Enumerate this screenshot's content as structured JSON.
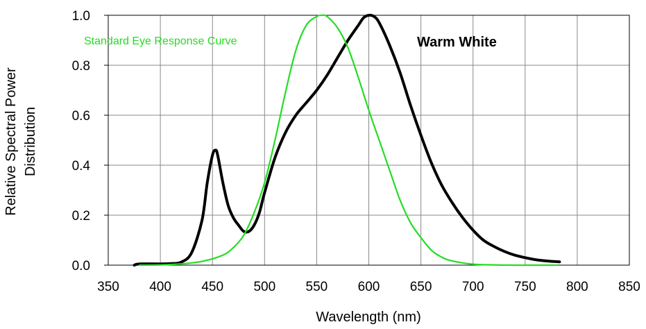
{
  "chart_data": {
    "type": "line",
    "title": "",
    "xlabel": "Wavelength (nm)",
    "ylabel": [
      "Relative Spectral Power",
      "Distribution"
    ],
    "xlim": [
      350,
      850
    ],
    "ylim": [
      0,
      1.0
    ],
    "xticks": [
      350,
      400,
      450,
      500,
      550,
      600,
      650,
      700,
      750,
      800,
      850
    ],
    "yticks": [
      "0.0",
      "0.2",
      "0.4",
      "0.6",
      "0.8",
      "1.0"
    ],
    "grid": true,
    "annotations": [
      {
        "text": "Standard Eye Response Curve",
        "color": "#22dd22"
      },
      {
        "text": "Warm White",
        "color": "#000000"
      }
    ],
    "series": [
      {
        "color": "#000000",
        "x": [
          375,
          380,
          400,
          410,
          420,
          430,
          440,
          445,
          450,
          453,
          455,
          460,
          465,
          470,
          475,
          480,
          485,
          490,
          495,
          500,
          510,
          520,
          530,
          540,
          550,
          560,
          570,
          580,
          590,
          595,
          600,
          605,
          610,
          620,
          630,
          640,
          650,
          660,
          670,
          680,
          690,
          700,
          710,
          720,
          730,
          740,
          750,
          760,
          770,
          783
        ],
        "y": [
          0.0,
          0.005,
          0.005,
          0.006,
          0.012,
          0.05,
          0.18,
          0.33,
          0.44,
          0.46,
          0.44,
          0.33,
          0.24,
          0.19,
          0.16,
          0.135,
          0.135,
          0.16,
          0.21,
          0.29,
          0.43,
          0.53,
          0.6,
          0.65,
          0.7,
          0.76,
          0.83,
          0.9,
          0.96,
          0.99,
          1.0,
          0.995,
          0.97,
          0.88,
          0.77,
          0.64,
          0.52,
          0.41,
          0.32,
          0.25,
          0.19,
          0.14,
          0.1,
          0.075,
          0.055,
          0.04,
          0.03,
          0.022,
          0.017,
          0.013
        ]
      },
      {
        "color": "#22dd22",
        "x": [
          380,
          400,
          420,
          440,
          460,
          470,
          480,
          490,
          500,
          510,
          520,
          530,
          540,
          550,
          555,
          560,
          570,
          580,
          590,
          600,
          610,
          620,
          630,
          640,
          650,
          660,
          670,
          680,
          700,
          720,
          740,
          760,
          780
        ],
        "y": [
          0.0,
          0.001,
          0.005,
          0.015,
          0.04,
          0.07,
          0.12,
          0.21,
          0.33,
          0.5,
          0.69,
          0.86,
          0.96,
          0.995,
          1.0,
          0.995,
          0.95,
          0.87,
          0.75,
          0.62,
          0.5,
          0.38,
          0.26,
          0.17,
          0.11,
          0.06,
          0.032,
          0.017,
          0.004,
          0.001,
          0.0,
          0.0,
          0.0
        ]
      }
    ]
  }
}
